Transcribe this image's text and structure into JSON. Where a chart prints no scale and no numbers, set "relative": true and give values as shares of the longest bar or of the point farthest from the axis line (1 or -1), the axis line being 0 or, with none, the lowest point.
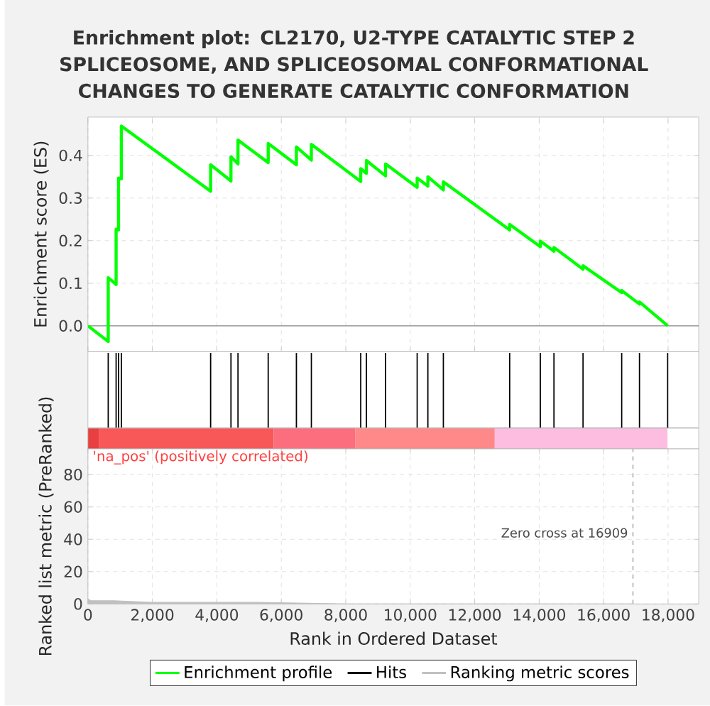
{
  "chart_data": [
    {
      "type": "line",
      "title": "Enrichment plot: CL2170, U2-TYPE CATALYTIC STEP 2 SPLICEOSOME, AND SPLICEOSOMAL CONFORMATIONAL CHANGES TO GENERATE CATALYTIC CONFORMATION",
      "ylabel": "Enrichment score (ES)",
      "series": [
        {
          "name": "Enrichment profile",
          "color": "#00ff00",
          "x": [
            0,
            630,
            630,
            875,
            875,
            950,
            950,
            1037,
            1037,
            3807,
            3807,
            4438,
            4438,
            4656,
            4656,
            5593,
            5593,
            6468,
            6468,
            6932,
            6932,
            8464,
            8464,
            8639,
            8639,
            9234,
            9234,
            10214,
            10214,
            10547,
            10547,
            11028,
            11028,
            13085,
            13085,
            14035,
            14035,
            14459,
            14459,
            15361,
            15361,
            16560,
            16560,
            17112,
            17112,
            17987
          ],
          "values": [
            0,
            -0.037,
            0.113,
            0.097,
            0.227,
            0.225,
            0.347,
            0.345,
            0.469,
            0.316,
            0.378,
            0.34,
            0.397,
            0.38,
            0.436,
            0.383,
            0.428,
            0.378,
            0.42,
            0.389,
            0.426,
            0.339,
            0.369,
            0.358,
            0.388,
            0.352,
            0.38,
            0.325,
            0.347,
            0.328,
            0.35,
            0.319,
            0.338,
            0.225,
            0.238,
            0.186,
            0.199,
            0.175,
            0.184,
            0.133,
            0.141,
            0.078,
            0.083,
            0.051,
            0.056,
            0
          ]
        }
      ],
      "xlim": [
        0,
        18950
      ],
      "ylim": [
        -0.06,
        0.49
      ],
      "xticks": [
        0,
        2000,
        4000,
        6000,
        8000,
        10000,
        12000,
        14000,
        16000,
        18000
      ],
      "yticks": [
        {
          "value": 0,
          "label": "0.0"
        },
        {
          "value": 0.1,
          "label": "0.1"
        },
        {
          "value": 0.2,
          "label": "0.2"
        },
        {
          "value": 0.3,
          "label": "0.3"
        },
        {
          "value": 0.4,
          "label": "0.4"
        }
      ],
      "grid": true,
      "tick_labels": "y",
      "ref_lines": [
        {
          "axis": "y",
          "value": 0,
          "color": "#999999"
        }
      ]
    },
    {
      "type": "bar",
      "relative": true,
      "tick_labels": false,
      "xlim": [
        0,
        18950
      ],
      "series": [
        {
          "name": "Hits",
          "color": "#000000",
          "x": [
            630,
            875,
            950,
            1037,
            3807,
            4438,
            4656,
            5593,
            6468,
            6932,
            8464,
            8639,
            9234,
            10214,
            10547,
            11028,
            13085,
            14035,
            14459,
            15361,
            16560,
            17112,
            17987
          ],
          "values": [
            1,
            1,
            1,
            1,
            1,
            1,
            1,
            1,
            1,
            1,
            1,
            1,
            1,
            1,
            1,
            1,
            1,
            1,
            1,
            1,
            1,
            1,
            1
          ]
        }
      ],
      "grid": false
    },
    {
      "type": "area",
      "xlabel": "Rank in Ordered Dataset",
      "ylabel": "Ranked list metric (PreRanked)",
      "series": [
        {
          "name": "Ranking metric scores",
          "color": "#c0c0c0",
          "x": [
            0,
            100,
            200,
            800,
            2000,
            4000,
            5300,
            8000,
            12000,
            16909
          ],
          "values": [
            3,
            2,
            2,
            2,
            1,
            1,
            1,
            0,
            0,
            0
          ]
        }
      ],
      "xlim": [
        0,
        18950
      ],
      "ylim": [
        0,
        96
      ],
      "xticks": [
        0,
        {
          "value": 2000,
          "label": "2,000"
        },
        {
          "value": 4000,
          "label": "4,000"
        },
        {
          "value": 6000,
          "label": "6,000"
        },
        {
          "value": 8000,
          "label": "8,000"
        },
        {
          "value": 10000,
          "label": "10,000"
        },
        {
          "value": 12000,
          "label": "12,000"
        },
        {
          "value": 14000,
          "label": "14,000"
        },
        {
          "value": 16000,
          "label": "16,000"
        },
        {
          "value": 18000,
          "label": "18,000"
        }
      ],
      "yticks": [
        0,
        20,
        40,
        60,
        80
      ],
      "grid": true,
      "legend": "bottom",
      "ref_lines": [
        {
          "axis": "x",
          "value": 16909,
          "color": "#aaaaaa",
          "line_style": "dashed"
        }
      ],
      "annotations": [
        "'na_pos' (positively correlated)",
        {
          "text": "Zero cross at 16909",
          "x": 16909,
          "y": 44
        }
      ]
    }
  ]
}
